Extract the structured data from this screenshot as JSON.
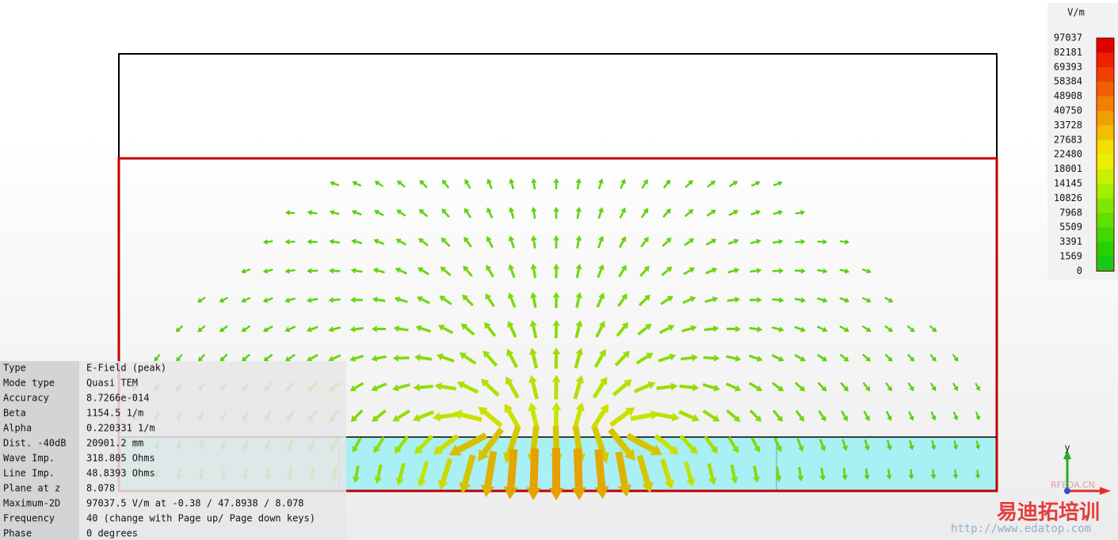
{
  "legend": {
    "unit": "V/m",
    "values": [
      97037,
      82181,
      69393,
      58384,
      48908,
      40750,
      33728,
      27683,
      22480,
      18001,
      14145,
      10826,
      7968,
      5509,
      3391,
      1569,
      0
    ]
  },
  "info": {
    "rows": [
      [
        "Type",
        "E-Field (peak)"
      ],
      [
        "Mode type",
        "Quasi TEM"
      ],
      [
        "Accuracy",
        "8.7266e-014"
      ],
      [
        "Beta",
        "1154.5 1/m"
      ],
      [
        "Alpha",
        "0.220331 1/m"
      ],
      [
        "Dist. -40dB",
        "20901.2 mm"
      ],
      [
        "Wave Imp.",
        "318.805 Ohms"
      ],
      [
        "Line Imp.",
        "48.8393 Ohms"
      ],
      [
        "Plane at z",
        "8.078"
      ],
      [
        "Maximum-2D",
        "97037.5 V/m at -0.38 / 47.8938 / 8.078"
      ],
      [
        "Frequency",
        "40  (change with Page up/ Page down keys)"
      ],
      [
        "Phase",
        "0 degrees"
      ]
    ]
  },
  "axes": {
    "y": "y"
  },
  "watermark": {
    "site": "RFEDA.CN",
    "brand": "易迪拓培训",
    "url": "http://www.edatop.com"
  }
}
